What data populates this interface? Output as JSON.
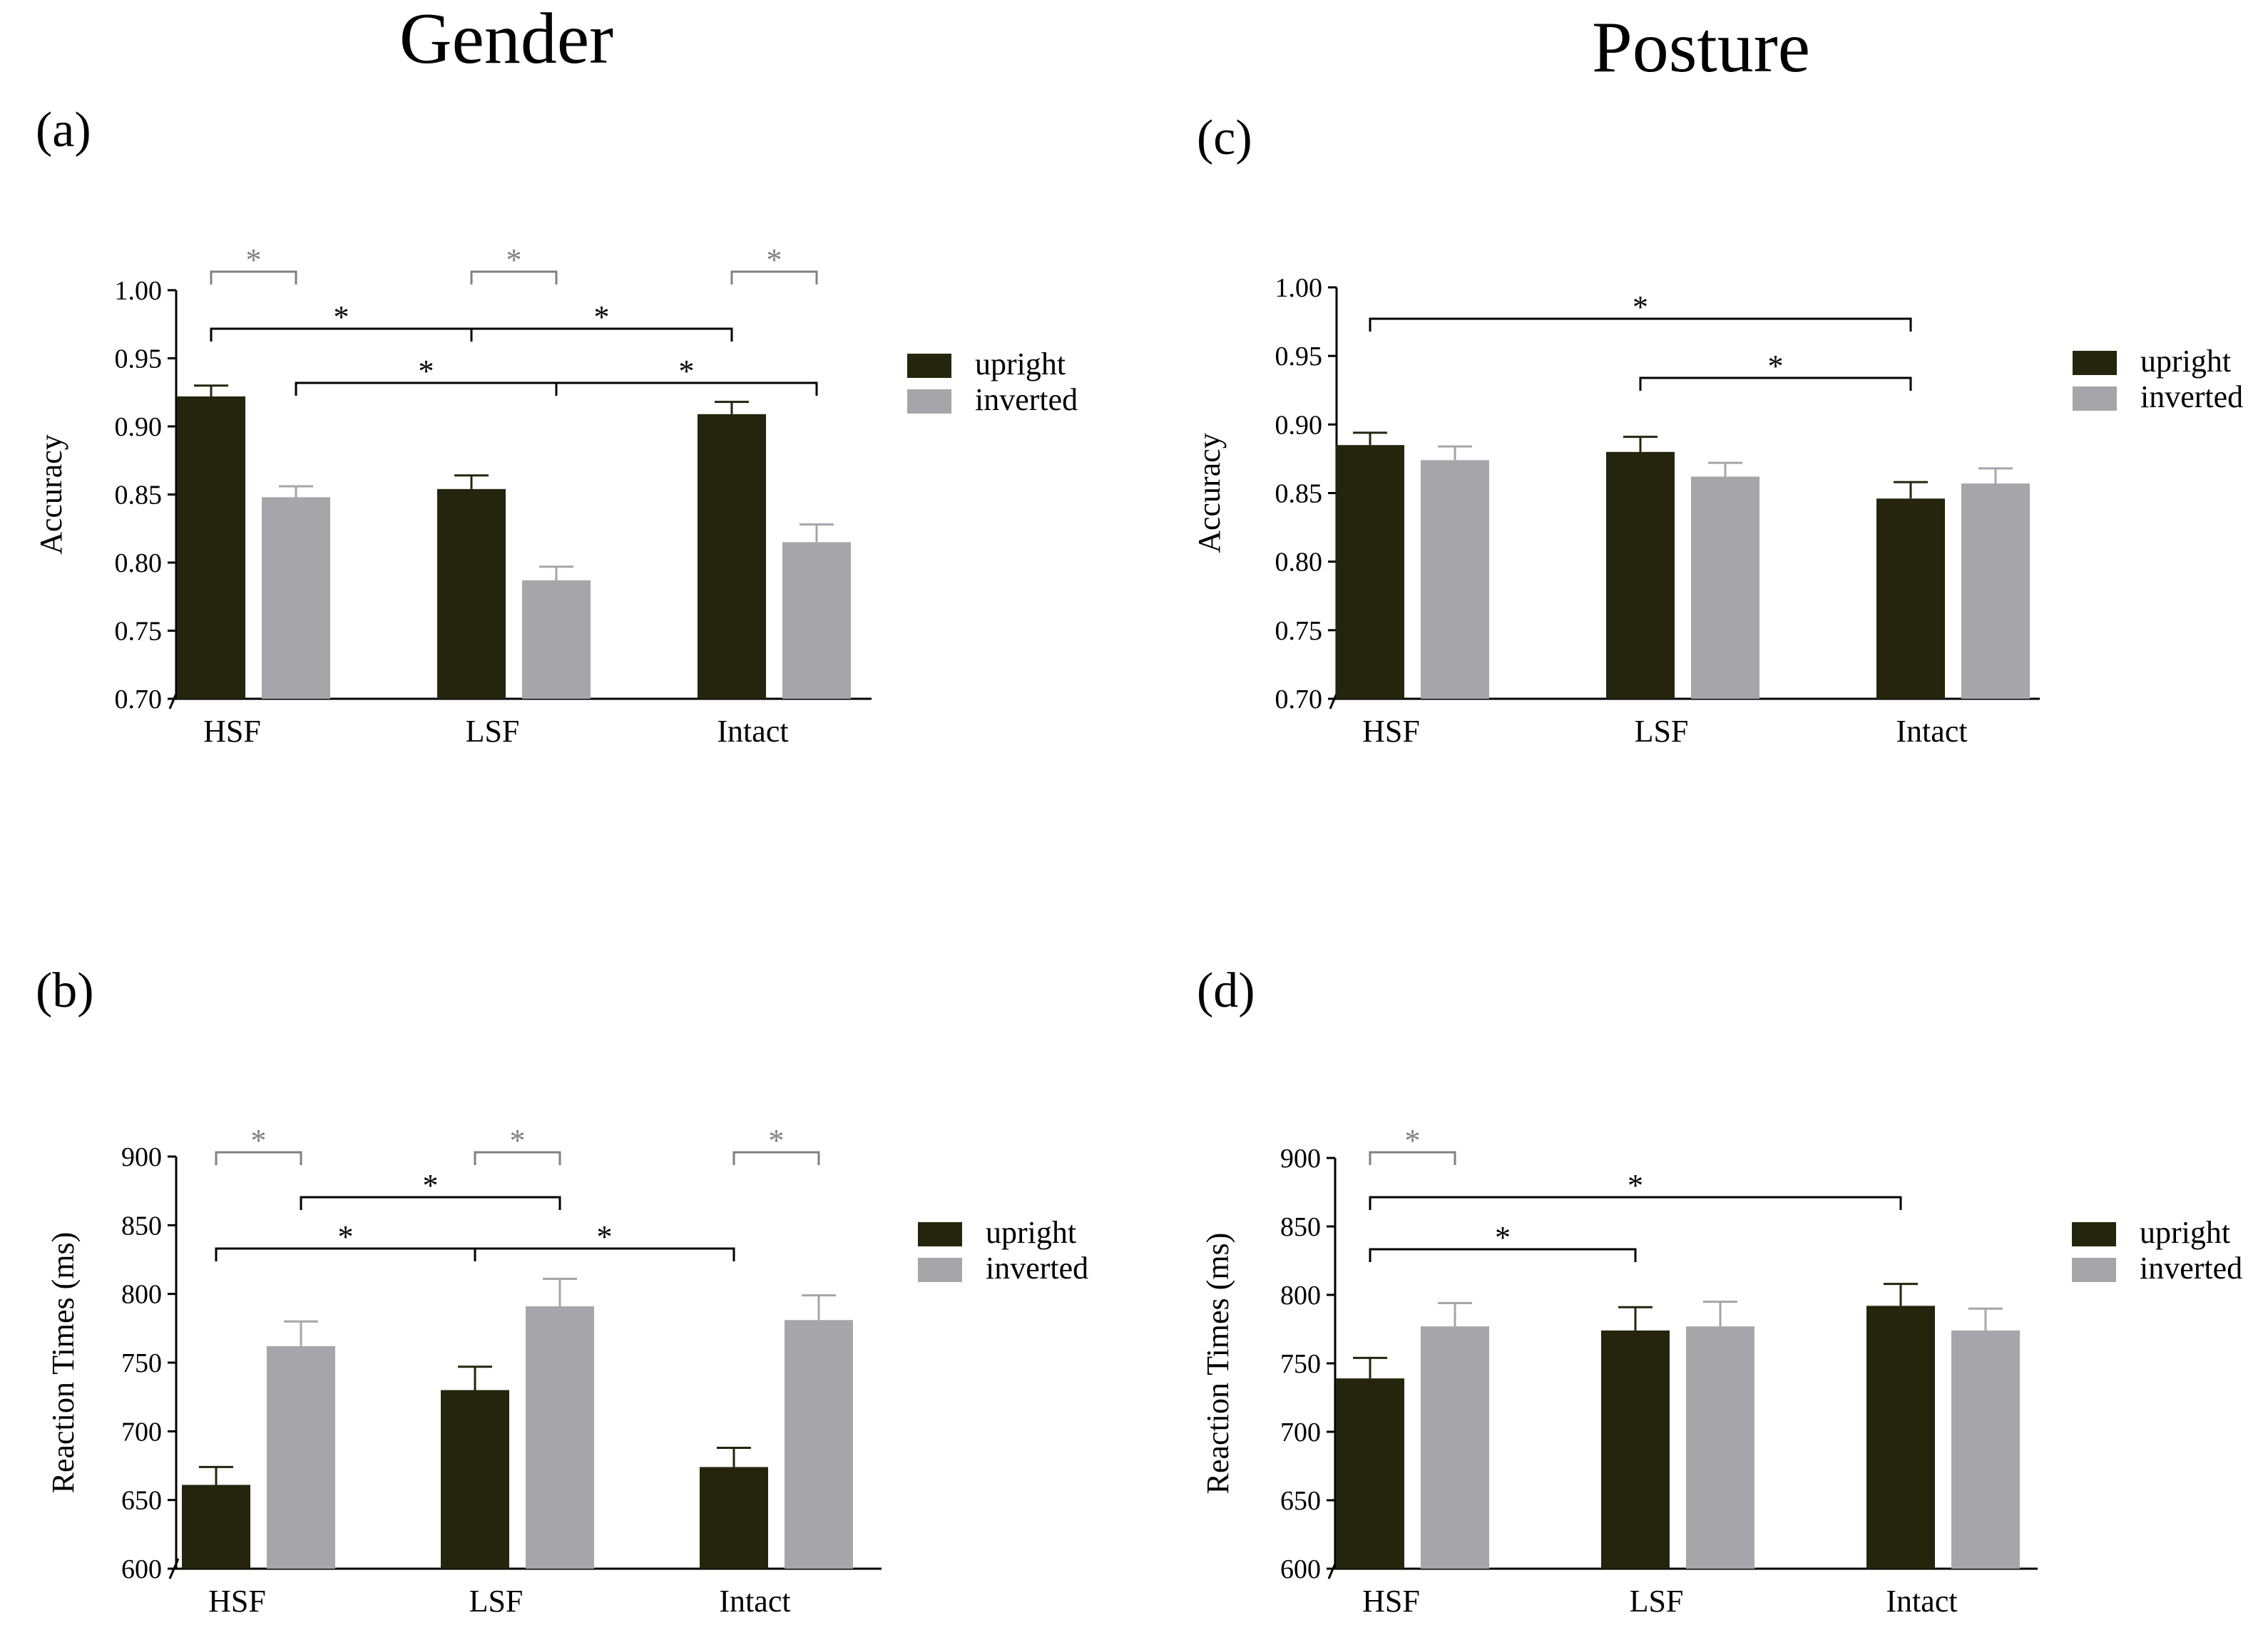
{
  "column_titles": {
    "left": "Gender",
    "right": "Posture"
  },
  "colors": {
    "upright": "#25250d",
    "inverted": "#a6a5aa",
    "sig_gray": "#808080",
    "sig_black": "#000000"
  },
  "chart_data": [
    {
      "id": "a",
      "panel_label": "(a)",
      "type": "bar",
      "categories": [
        "HSF",
        "LSF",
        "Intact"
      ],
      "ylabel": "Accuracy",
      "xlabel": "",
      "ylim": [
        0.7,
        1.0
      ],
      "yticks": [
        "0.70",
        "0.75",
        "0.80",
        "0.85",
        "0.90",
        "0.95",
        "1.00"
      ],
      "legend": [
        "upright",
        "inverted"
      ],
      "series": [
        {
          "name": "upright",
          "values": [
            0.922,
            0.854,
            0.909
          ],
          "errors": [
            0.008,
            0.01,
            0.009
          ]
        },
        {
          "name": "inverted",
          "values": [
            0.848,
            0.787,
            0.815
          ],
          "errors": [
            0.008,
            0.01,
            0.013
          ]
        }
      ],
      "significance": [
        {
          "from": [
            0,
            0
          ],
          "to": [
            0,
            1
          ],
          "label": "*",
          "color": "gray",
          "tier": 3
        },
        {
          "from": [
            1,
            0
          ],
          "to": [
            1,
            1
          ],
          "label": "*",
          "color": "gray",
          "tier": 3
        },
        {
          "from": [
            2,
            0
          ],
          "to": [
            2,
            1
          ],
          "label": "*",
          "color": "gray",
          "tier": 3
        },
        {
          "from": [
            0,
            0
          ],
          "to": [
            1,
            0
          ],
          "label": "*",
          "color": "black",
          "tier": 2
        },
        {
          "from": [
            1,
            0
          ],
          "to": [
            2,
            0
          ],
          "label": "*",
          "color": "black",
          "tier": 2
        },
        {
          "from": [
            0,
            1
          ],
          "to": [
            1,
            1
          ],
          "label": "*",
          "color": "black",
          "tier": 1
        },
        {
          "from": [
            1,
            1
          ],
          "to": [
            2,
            1
          ],
          "label": "*",
          "color": "black",
          "tier": 1
        }
      ]
    },
    {
      "id": "b",
      "panel_label": "(b)",
      "type": "bar",
      "categories": [
        "HSF",
        "LSF",
        "Intact"
      ],
      "ylabel": "Reaction Times (ms)",
      "xlabel": "",
      "ylim": [
        600,
        900
      ],
      "yticks": [
        "600",
        "650",
        "700",
        "750",
        "800",
        "850",
        "900"
      ],
      "legend": [
        "upright",
        "inverted"
      ],
      "series": [
        {
          "name": "upright",
          "values": [
            661,
            730,
            674
          ],
          "errors": [
            13,
            17,
            14
          ]
        },
        {
          "name": "inverted",
          "values": [
            762,
            791,
            781
          ],
          "errors": [
            18,
            20,
            18
          ]
        }
      ],
      "significance": [
        {
          "from": [
            0,
            0
          ],
          "to": [
            0,
            1
          ],
          "label": "*",
          "color": "gray",
          "tier": 3
        },
        {
          "from": [
            1,
            0
          ],
          "to": [
            1,
            1
          ],
          "label": "*",
          "color": "gray",
          "tier": 3
        },
        {
          "from": [
            2,
            0
          ],
          "to": [
            2,
            1
          ],
          "label": "*",
          "color": "gray",
          "tier": 3
        },
        {
          "from": [
            0,
            1
          ],
          "to": [
            1,
            1
          ],
          "label": "*",
          "color": "black",
          "tier": 2
        },
        {
          "from": [
            0,
            0
          ],
          "to": [
            1,
            0
          ],
          "label": "*",
          "color": "black",
          "tier": 1
        },
        {
          "from": [
            1,
            0
          ],
          "to": [
            2,
            0
          ],
          "label": "*",
          "color": "black",
          "tier": 1
        }
      ]
    },
    {
      "id": "c",
      "panel_label": "(c)",
      "type": "bar",
      "categories": [
        "HSF",
        "LSF",
        "Intact"
      ],
      "ylabel": "Accuracy",
      "xlabel": "",
      "ylim": [
        0.7,
        1.0
      ],
      "yticks": [
        "0.70",
        "0.75",
        "0.80",
        "0.85",
        "0.90",
        "0.95",
        "1.00"
      ],
      "legend": [
        "upright",
        "inverted"
      ],
      "series": [
        {
          "name": "upright",
          "values": [
            0.885,
            0.88,
            0.846
          ],
          "errors": [
            0.009,
            0.011,
            0.012
          ]
        },
        {
          "name": "inverted",
          "values": [
            0.874,
            0.862,
            0.857
          ],
          "errors": [
            0.01,
            0.01,
            0.011
          ]
        }
      ],
      "significance": [
        {
          "from": [
            0,
            0
          ],
          "to": [
            2,
            0
          ],
          "label": "*",
          "color": "black",
          "tier": 2
        },
        {
          "from": [
            1,
            0
          ],
          "to": [
            2,
            0
          ],
          "label": "*",
          "color": "black",
          "tier": 1
        }
      ]
    },
    {
      "id": "d",
      "panel_label": "(d)",
      "type": "bar",
      "categories": [
        "HSF",
        "LSF",
        "Intact"
      ],
      "ylabel": "Reaction Times (ms)",
      "xlabel": "",
      "ylim": [
        600,
        900
      ],
      "yticks": [
        "600",
        "650",
        "700",
        "750",
        "800",
        "850",
        "900"
      ],
      "legend": [
        "upright",
        "inverted"
      ],
      "series": [
        {
          "name": "upright",
          "values": [
            739,
            774,
            792
          ],
          "errors": [
            15,
            17,
            16
          ]
        },
        {
          "name": "inverted",
          "values": [
            777,
            777,
            774
          ],
          "errors": [
            17,
            18,
            16
          ]
        }
      ],
      "significance": [
        {
          "from": [
            0,
            0
          ],
          "to": [
            0,
            1
          ],
          "label": "*",
          "color": "gray",
          "tier": 3
        },
        {
          "from": [
            0,
            0
          ],
          "to": [
            2,
            0
          ],
          "label": "*",
          "color": "black",
          "tier": 2
        },
        {
          "from": [
            0,
            0
          ],
          "to": [
            1,
            0
          ],
          "label": "*",
          "color": "black",
          "tier": 1
        }
      ]
    }
  ]
}
